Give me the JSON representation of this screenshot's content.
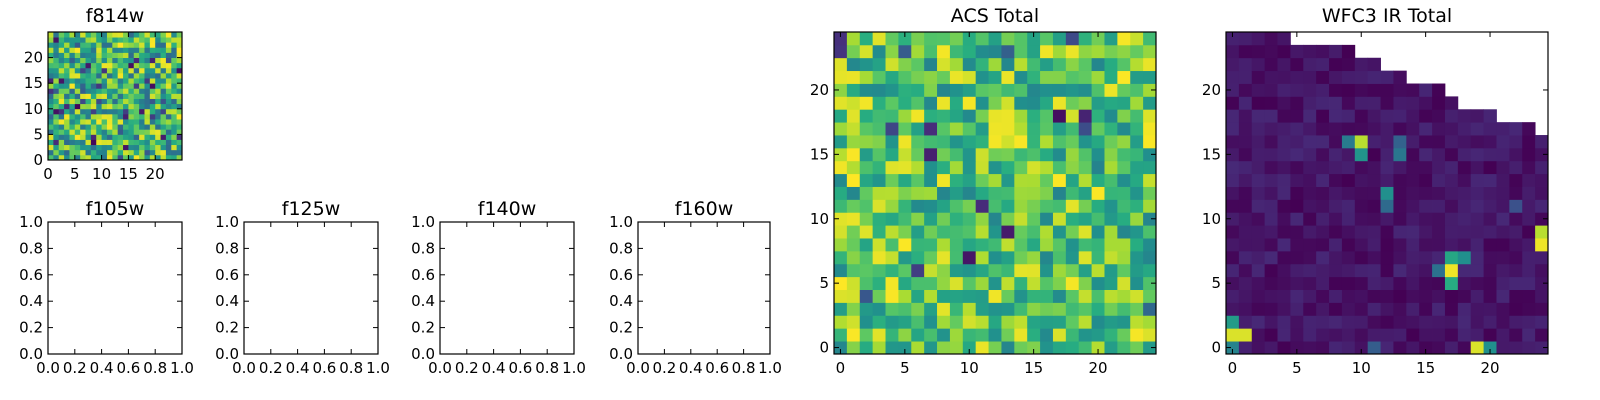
{
  "figure": {
    "panels": [
      {
        "id": "f814w",
        "title": "f814w"
      },
      {
        "id": "f105w",
        "title": "f105w"
      },
      {
        "id": "f125w",
        "title": "f125w"
      },
      {
        "id": "f140w",
        "title": "f140w"
      },
      {
        "id": "f160w",
        "title": "f160w"
      },
      {
        "id": "acs_total",
        "title": "ACS Total"
      },
      {
        "id": "wfc3_ir_total",
        "title": "WFC3 IR Total"
      }
    ],
    "colormap": "viridis"
  },
  "chart_data": [
    {
      "type": "heatmap",
      "title": "f814w",
      "grid_size": 25,
      "xlim": [
        0,
        25
      ],
      "ylim": [
        0,
        25
      ],
      "xticks": [
        "0",
        "5",
        "10",
        "15",
        "20"
      ],
      "yticks": [
        "0",
        "5",
        "10",
        "15",
        "20"
      ],
      "seed": 814,
      "value_range": [
        0.35,
        1.0
      ],
      "dark_fraction": 0.06
    },
    {
      "type": "empty",
      "title": "f105w",
      "xlim": [
        0.0,
        1.0
      ],
      "ylim": [
        0.0,
        1.0
      ],
      "xticks": [
        "0.0",
        "0.2",
        "0.4",
        "0.6",
        "0.8",
        "1.0"
      ],
      "yticks": [
        "0.0",
        "0.2",
        "0.4",
        "0.6",
        "0.8",
        "1.0"
      ]
    },
    {
      "type": "empty",
      "title": "f125w",
      "xlim": [
        0.0,
        1.0
      ],
      "ylim": [
        0.0,
        1.0
      ],
      "xticks": [
        "0.0",
        "0.2",
        "0.4",
        "0.6",
        "0.8",
        "1.0"
      ],
      "yticks": [
        "0.0",
        "0.2",
        "0.4",
        "0.6",
        "0.8",
        "1.0"
      ]
    },
    {
      "type": "empty",
      "title": "f140w",
      "xlim": [
        0.0,
        1.0
      ],
      "ylim": [
        0.0,
        1.0
      ],
      "xticks": [
        "0.0",
        "0.2",
        "0.4",
        "0.6",
        "0.8",
        "1.0"
      ],
      "yticks": [
        "0.0",
        "0.2",
        "0.4",
        "0.6",
        "0.8",
        "1.0"
      ]
    },
    {
      "type": "empty",
      "title": "f160w",
      "xlim": [
        0.0,
        1.0
      ],
      "ylim": [
        0.0,
        1.0
      ],
      "xticks": [
        "0.0",
        "0.2",
        "0.4",
        "0.6",
        "0.8",
        "1.0"
      ],
      "yticks": [
        "0.0",
        "0.2",
        "0.4",
        "0.6",
        "0.8",
        "1.0"
      ]
    },
    {
      "type": "heatmap",
      "title": "ACS Total",
      "grid_size": 25,
      "xlim": [
        -0.5,
        24.5
      ],
      "ylim": [
        -0.5,
        24.5
      ],
      "xticks": [
        "0",
        "5",
        "10",
        "15",
        "20"
      ],
      "yticks": [
        "0",
        "5",
        "10",
        "15",
        "20"
      ],
      "seed": 2024,
      "value_range": [
        0.45,
        1.0
      ],
      "dark_fraction": 0.03
    },
    {
      "type": "heatmap",
      "title": "WFC3 IR Total",
      "grid_size": 25,
      "xlim": [
        -0.5,
        24.5
      ],
      "ylim": [
        -0.5,
        24.5
      ],
      "xticks": [
        "0",
        "5",
        "10",
        "15",
        "20"
      ],
      "yticks": [
        "0",
        "5",
        "10",
        "15",
        "20"
      ],
      "seed": 160,
      "value_range": [
        0.0,
        0.12
      ],
      "missing_top_right": [
        {
          "col_from": 5,
          "row_from": 24
        },
        {
          "col_from": 10,
          "row_from": 23
        },
        {
          "col_from": 12,
          "row_from": 22
        },
        {
          "col_from": 14,
          "row_from": 21
        },
        {
          "col_from": 17,
          "row_from": 20
        },
        {
          "col_from": 18,
          "row_from": 19
        },
        {
          "col_from": 21,
          "row_from": 18
        },
        {
          "col_from": 24,
          "row_from": 17
        }
      ],
      "bright_cells": [
        {
          "x": 0,
          "y": 1,
          "v": 0.95
        },
        {
          "x": 1,
          "y": 1,
          "v": 0.95
        },
        {
          "x": 0,
          "y": 2,
          "v": 0.55
        },
        {
          "x": 0,
          "y": 0,
          "v": 0.45
        },
        {
          "x": 17,
          "y": 6,
          "v": 0.98
        },
        {
          "x": 17,
          "y": 7,
          "v": 0.6
        },
        {
          "x": 18,
          "y": 7,
          "v": 0.5
        },
        {
          "x": 16,
          "y": 6,
          "v": 0.38
        },
        {
          "x": 17,
          "y": 5,
          "v": 0.62
        },
        {
          "x": 10,
          "y": 16,
          "v": 0.9
        },
        {
          "x": 10,
          "y": 15,
          "v": 0.52
        },
        {
          "x": 9,
          "y": 16,
          "v": 0.42
        },
        {
          "x": 13,
          "y": 15,
          "v": 0.4
        },
        {
          "x": 13,
          "y": 16,
          "v": 0.32
        },
        {
          "x": 12,
          "y": 12,
          "v": 0.5
        },
        {
          "x": 12,
          "y": 11,
          "v": 0.35
        },
        {
          "x": 19,
          "y": 0,
          "v": 0.95
        },
        {
          "x": 20,
          "y": 0,
          "v": 0.5
        },
        {
          "x": 24,
          "y": 8,
          "v": 0.98
        },
        {
          "x": 24,
          "y": 9,
          "v": 0.9
        },
        {
          "x": 22,
          "y": 11,
          "v": 0.25
        },
        {
          "x": 11,
          "y": 0,
          "v": 0.3
        }
      ]
    }
  ]
}
